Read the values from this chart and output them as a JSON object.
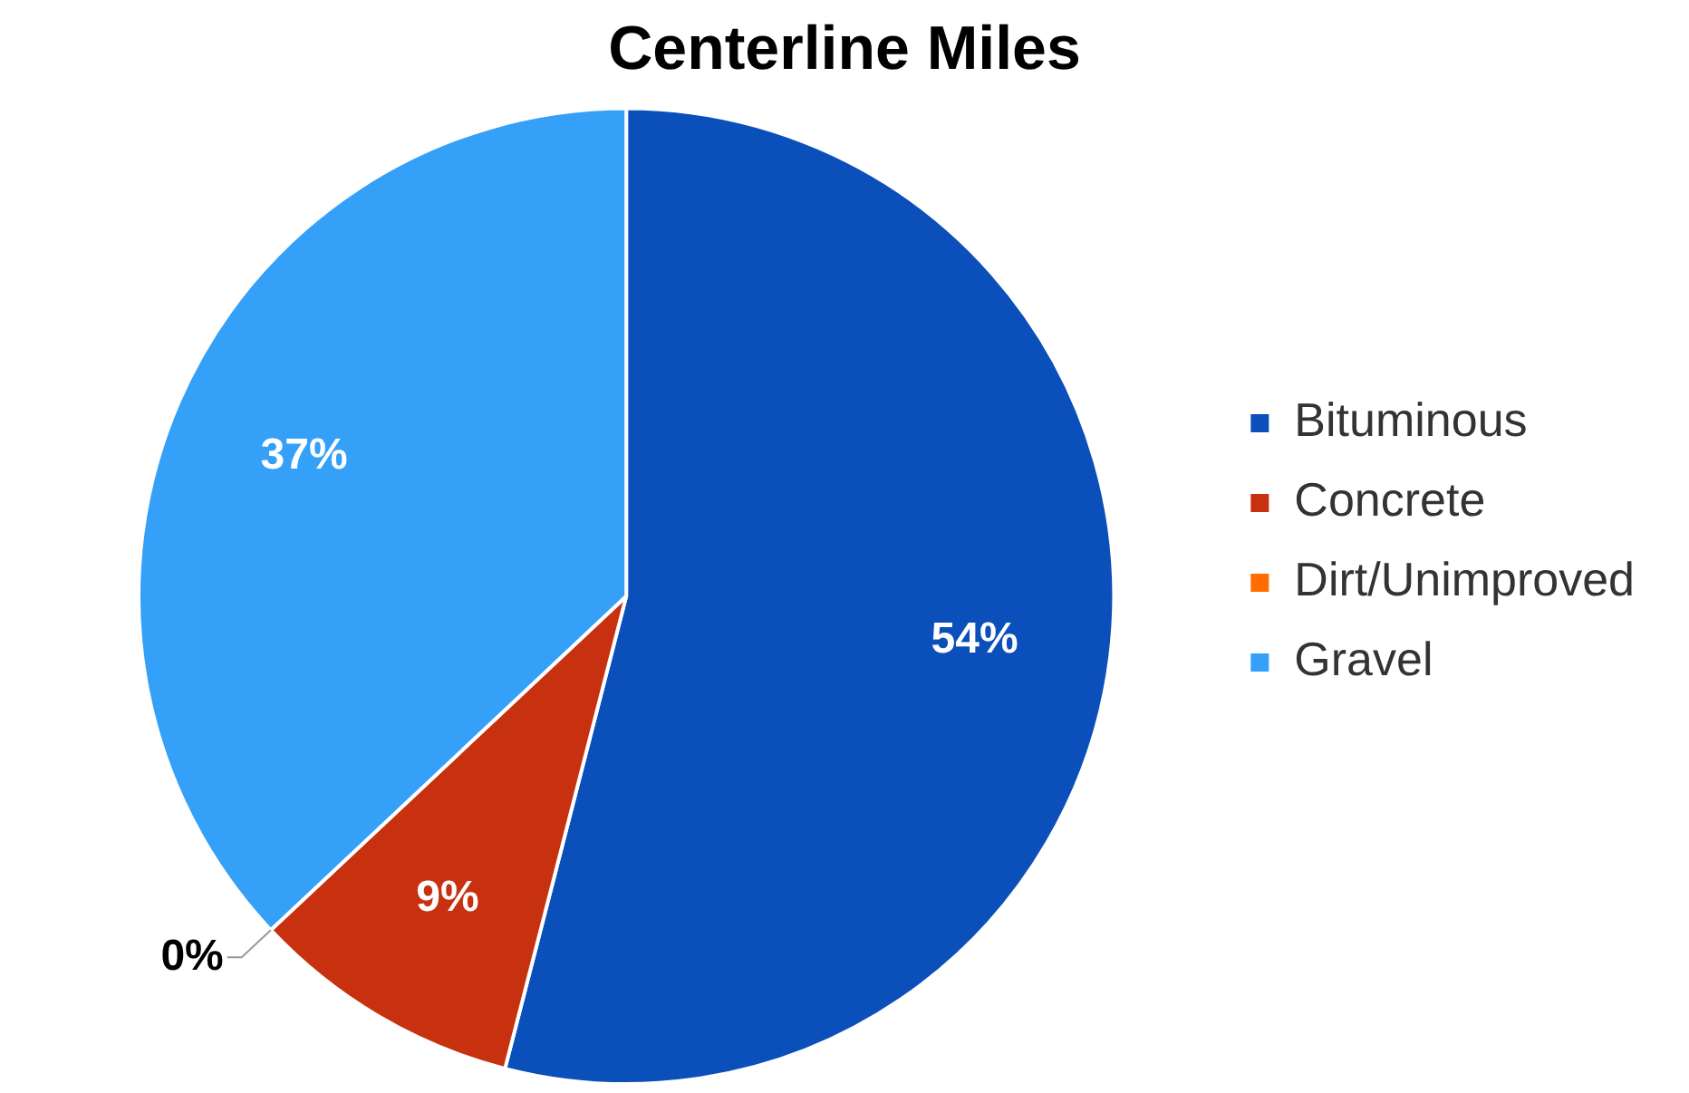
{
  "chart_data": {
    "type": "pie",
    "title": "Centerline Miles",
    "categories": [
      "Bituminous",
      "Concrete",
      "Dirt/Unimproved",
      "Gravel"
    ],
    "values": [
      54,
      9,
      0,
      37
    ],
    "colors": [
      "#0b4fba",
      "#c8310f",
      "#ff6d00",
      "#35a0f7"
    ],
    "value_labels": [
      "54%",
      "9%",
      "0%",
      "37%"
    ],
    "legend": "right"
  }
}
